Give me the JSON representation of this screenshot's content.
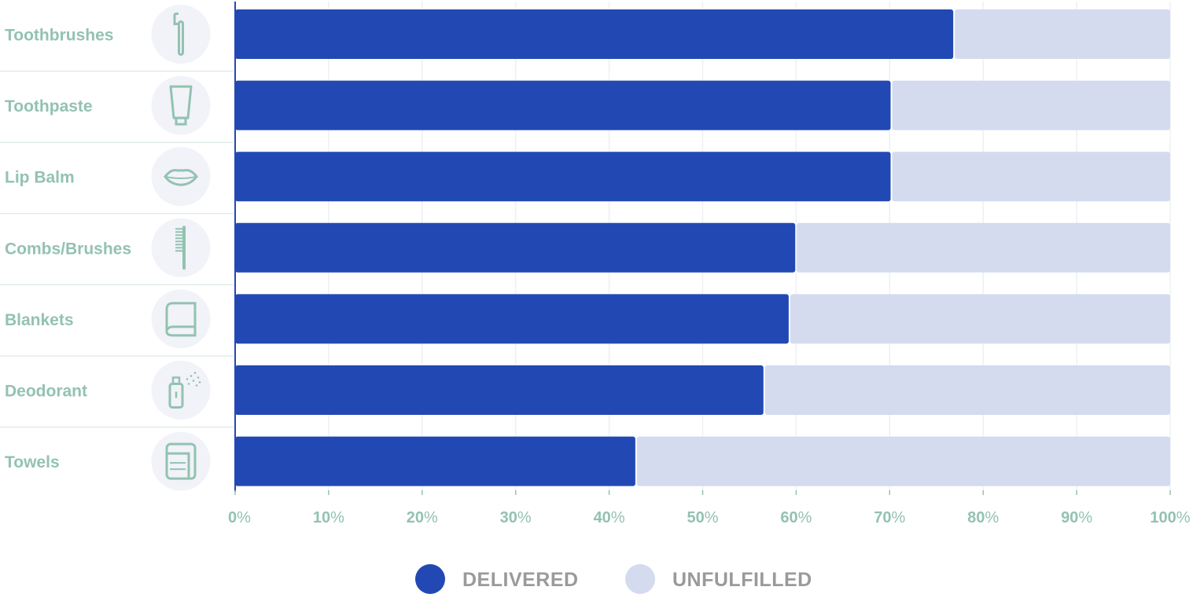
{
  "colors": {
    "delivered": "#2249B3",
    "unfulfilled": "#D4DBEF",
    "label": "#93C2B0",
    "icon": "#93C2B0",
    "icon_bg": "#F1F3F9",
    "grid": "#EEF0F4",
    "separator": "#D5E4DE",
    "axis": "#2249B3",
    "legend_text": "#9A9A9A"
  },
  "chart_data": {
    "type": "bar",
    "orientation": "horizontal",
    "stacked": true,
    "categories": [
      "Toothbrushes",
      "Toothpaste",
      "Lip Balm",
      "Combs/Brushes",
      "Blankets",
      "Deodorant",
      "Towels"
    ],
    "category_icons": [
      "toothbrush-icon",
      "toothpaste-icon",
      "lips-icon",
      "comb-icon",
      "blanket-icon",
      "deodorant-icon",
      "towel-icon"
    ],
    "series": [
      {
        "name": "DELIVERED",
        "values": [
          76.8,
          70.1,
          70.1,
          59.9,
          59.2,
          56.5,
          42.8
        ]
      },
      {
        "name": "UNFULFILLED",
        "values": [
          23.2,
          29.9,
          29.9,
          40.1,
          40.8,
          43.5,
          57.2
        ]
      }
    ],
    "xlim": [
      0,
      100
    ],
    "x_ticks": [
      0,
      10,
      20,
      30,
      40,
      50,
      60,
      70,
      80,
      90,
      100
    ],
    "x_tick_suffix": "%",
    "grid": true,
    "legend_position": "bottom-center"
  }
}
